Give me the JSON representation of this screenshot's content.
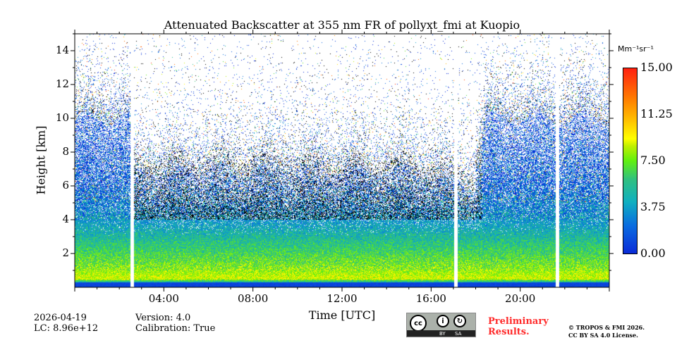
{
  "chart_data": {
    "type": "heatmap",
    "title": "Attenuated Backscatter at 355 nm FR of pollyxt_fmi at Kuopio",
    "xlabel": "Time [UTC]",
    "ylabel": "Height [km]",
    "xlim": [
      0,
      24
    ],
    "ylim": [
      0,
      15
    ],
    "x_ticks": [
      {
        "v": 4,
        "label": "04:00"
      },
      {
        "v": 8,
        "label": "08:00"
      },
      {
        "v": 12,
        "label": "12:00"
      },
      {
        "v": 16,
        "label": "16:00"
      },
      {
        "v": 20,
        "label": "20:00"
      }
    ],
    "y_ticks": [
      {
        "v": 2,
        "label": "2"
      },
      {
        "v": 4,
        "label": "4"
      },
      {
        "v": 6,
        "label": "6"
      },
      {
        "v": 8,
        "label": "8"
      },
      {
        "v": 10,
        "label": "10"
      },
      {
        "v": 12,
        "label": "12"
      },
      {
        "v": 14,
        "label": "14"
      }
    ],
    "colorbar": {
      "unit": "Mm⁻¹sr⁻¹",
      "clim": [
        0,
        15
      ],
      "ticks": [
        {
          "v": 0,
          "label": "0.00"
        },
        {
          "v": 3.75,
          "label": "3.75"
        },
        {
          "v": 7.5,
          "label": "7.50"
        },
        {
          "v": 11.25,
          "label": "11.25"
        },
        {
          "v": 15,
          "label": "15.00"
        }
      ],
      "colormap": [
        "#0a2bd8",
        "#10b0c0",
        "#60f010",
        "#ffff00",
        "#ff8000",
        "#ff2010"
      ]
    },
    "data_gaps_utc": [
      [
        2.5,
        2.65
      ],
      [
        17.05,
        17.2
      ],
      [
        21.6,
        21.75
      ]
    ],
    "profile_km_value": [
      [
        0.1,
        0.8
      ],
      [
        0.5,
        9
      ],
      [
        1,
        8
      ],
      [
        2,
        6.5
      ],
      [
        3,
        5
      ],
      [
        4,
        3.5
      ],
      [
        5,
        2.5
      ],
      [
        6,
        1.5
      ],
      [
        8,
        1
      ],
      [
        10,
        0.6
      ]
    ],
    "signal_top_km": {
      "edges_before_2.5h": 10,
      "middle_2.6_to_18h": 7,
      "after_18.5h": 10
    }
  },
  "footer": {
    "date": "2026-04-19",
    "lc": "LC: 8.96e+12",
    "version": "Version: 4.0",
    "calibration": "Calibration: True",
    "preliminary": "Preliminary",
    "results": "Results.",
    "copyright": "© TROPOS & FMI 2026.",
    "license": "CC BY SA 4.0 License.",
    "cc_logo": {
      "cc": "cc",
      "by": "BY",
      "sa": "SA"
    }
  }
}
